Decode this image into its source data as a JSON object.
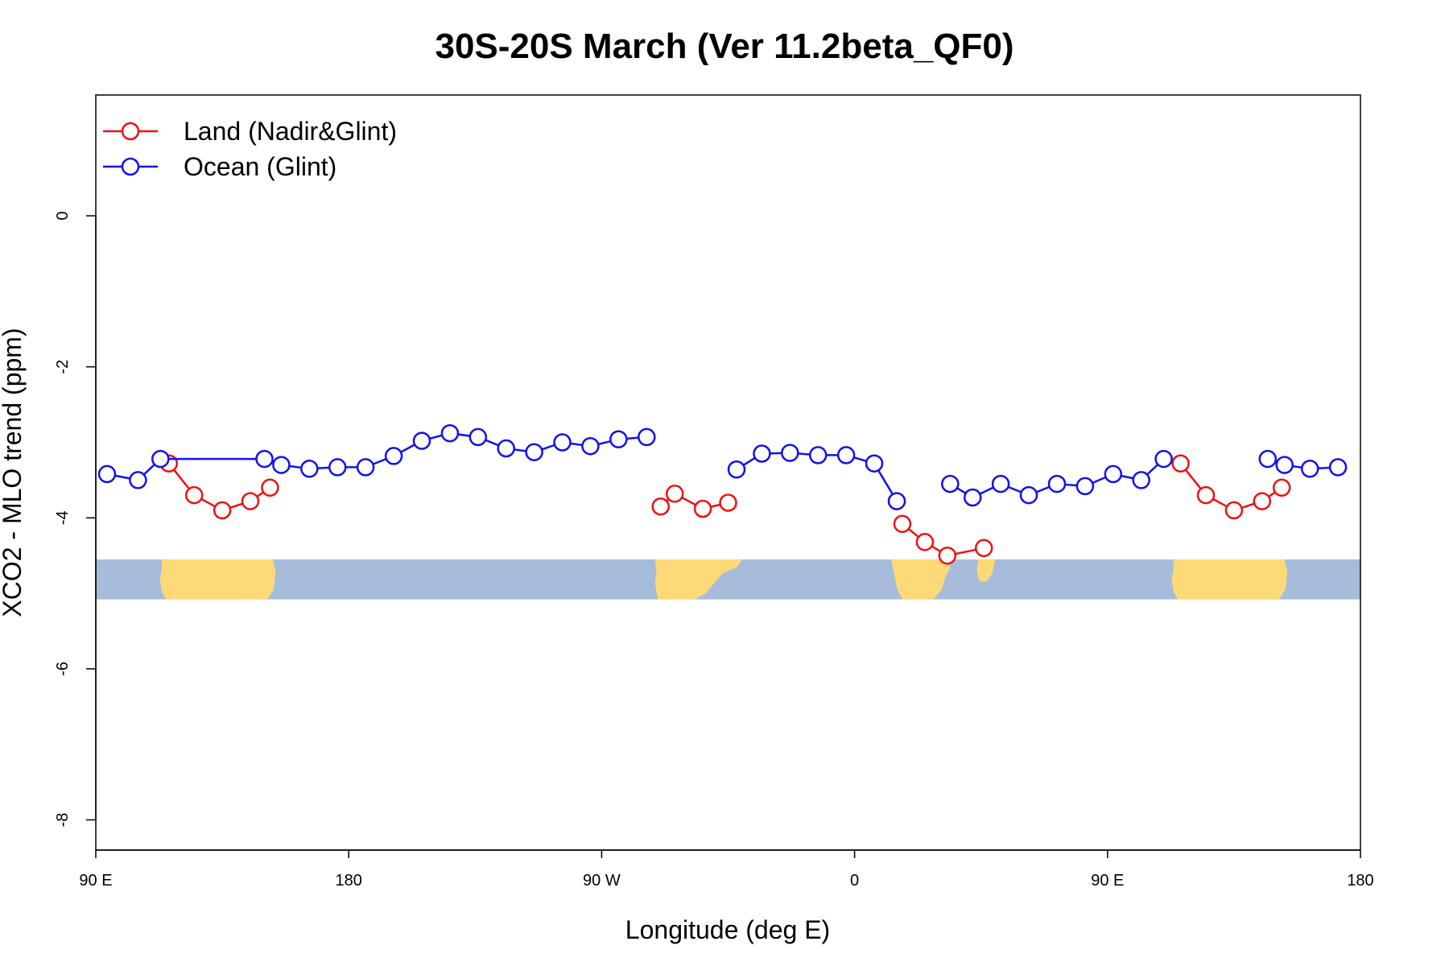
{
  "chart_data": {
    "type": "line",
    "title": "30S-20S March (Ver 11.2beta_QF0)",
    "xlabel": "Longitude (deg E)",
    "ylabel": "XCO2 - MLO trend (ppm)",
    "x_tick_values": [
      90,
      180,
      270,
      360,
      450,
      540
    ],
    "x_tick_labels": [
      "90 E",
      "180",
      "90 W",
      "0",
      "90 E",
      "180"
    ],
    "y_ticks": [
      0,
      -2,
      -4,
      -6,
      -8
    ],
    "xlim": [
      90,
      540
    ],
    "ylim": [
      -8.4,
      1.6
    ],
    "legend_position": "top-left",
    "grid": false,
    "series": [
      {
        "name": "Land (Nadir&Glint)",
        "color": "#ee1111",
        "points": [
          [
            116,
            -3.28
          ],
          [
            125,
            -3.7
          ],
          [
            135,
            -3.9
          ],
          [
            145,
            -3.78
          ],
          [
            152,
            -3.6
          ],
          null,
          [
            291,
            -3.85
          ],
          [
            296,
            -3.68
          ],
          [
            306,
            -3.88
          ],
          [
            315,
            -3.8
          ],
          null,
          [
            377,
            -4.08
          ],
          [
            385,
            -4.32
          ],
          [
            393,
            -4.5
          ],
          [
            406,
            -4.4
          ],
          null,
          [
            476,
            -3.28
          ],
          [
            485,
            -3.7
          ],
          [
            495,
            -3.9
          ],
          [
            505,
            -3.78
          ],
          [
            512,
            -3.6
          ]
        ]
      },
      {
        "name": "Ocean (Glint)",
        "color": "#1111ee",
        "points": [
          [
            94,
            -3.42
          ],
          [
            105,
            -3.5
          ],
          [
            113,
            -3.22
          ],
          [
            150,
            -3.22
          ],
          [
            156,
            -3.3
          ],
          [
            166,
            -3.35
          ],
          [
            176,
            -3.33
          ],
          [
            186,
            -3.33
          ],
          [
            196,
            -3.18
          ],
          [
            206,
            -2.98
          ],
          [
            216,
            -2.88
          ],
          [
            226,
            -2.93
          ],
          [
            236,
            -3.08
          ],
          [
            246,
            -3.13
          ],
          [
            256,
            -3.0
          ],
          [
            266,
            -3.05
          ],
          [
            276,
            -2.96
          ],
          [
            286,
            -2.93
          ],
          null,
          [
            318,
            -3.36
          ],
          [
            327,
            -3.15
          ],
          [
            337,
            -3.14
          ],
          [
            347,
            -3.17
          ],
          [
            357,
            -3.17
          ],
          [
            367,
            -3.28
          ],
          [
            375,
            -3.78
          ],
          null,
          [
            394,
            -3.55
          ],
          [
            402,
            -3.73
          ],
          [
            412,
            -3.55
          ],
          [
            422,
            -3.7
          ],
          [
            432,
            -3.55
          ],
          [
            442,
            -3.58
          ],
          [
            452,
            -3.42
          ],
          [
            462,
            -3.5
          ],
          [
            470,
            -3.22
          ],
          null,
          [
            507,
            -3.22
          ],
          [
            513,
            -3.3
          ],
          [
            522,
            -3.35
          ],
          [
            532,
            -3.33
          ]
        ]
      }
    ],
    "map_strip": {
      "y_top": -4.55,
      "y_bottom": -5.08,
      "ocean_color": "#a7bcdb",
      "land_color": "#fdd978"
    }
  }
}
